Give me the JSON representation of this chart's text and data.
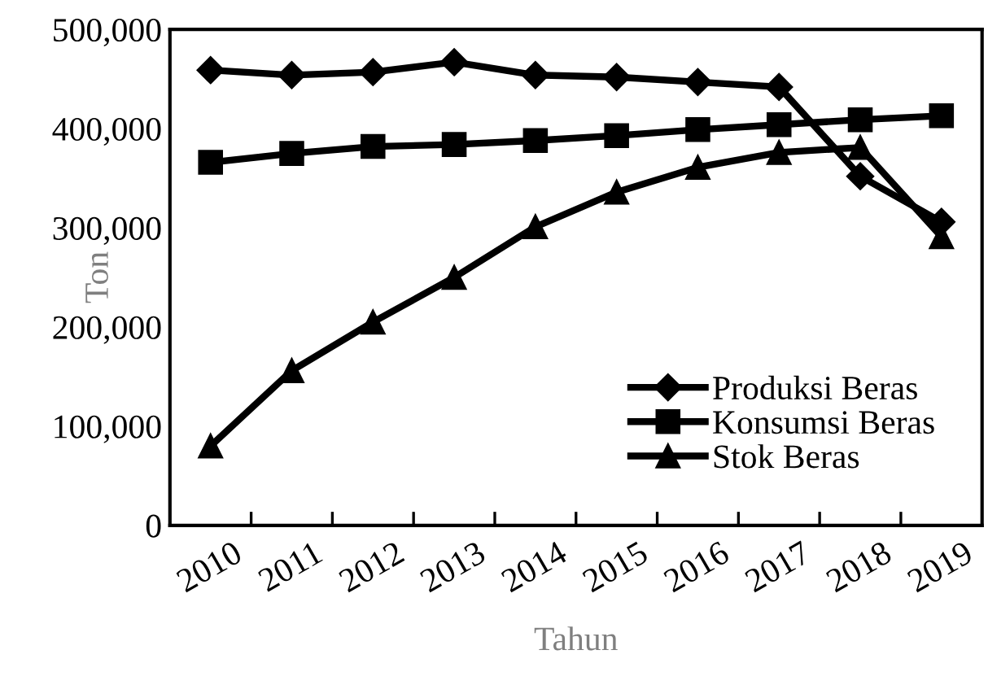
{
  "chart_data": {
    "type": "line",
    "xlabel": "Tahun",
    "ylabel": "Ton",
    "categories": [
      "2010",
      "2011",
      "2012",
      "2013",
      "2014",
      "2015",
      "2016",
      "2017",
      "2018",
      "2019"
    ],
    "series": [
      {
        "name": "Produksi Beras",
        "color": "#000000",
        "marker": "diamond",
        "values": [
          459000,
          454000,
          457000,
          467000,
          454000,
          452000,
          447000,
          442000,
          352000,
          306000
        ]
      },
      {
        "name": "Konsumsi Beras",
        "color": "#000000",
        "marker": "square",
        "values": [
          366000,
          375000,
          382000,
          384000,
          388000,
          393000,
          399000,
          404000,
          409000,
          413000
        ]
      },
      {
        "name": "Stok Beras",
        "color": "#000000",
        "marker": "triangle",
        "values": [
          80000,
          156000,
          205000,
          250000,
          301000,
          336000,
          361000,
          376000,
          381000,
          291000
        ]
      }
    ],
    "ylim": [
      0,
      500000
    ],
    "yticks": [
      {
        "value": 0,
        "label": "0"
      },
      {
        "value": 100000,
        "label": "100,000"
      },
      {
        "value": 200000,
        "label": "200,000"
      },
      {
        "value": 300000,
        "label": "300,000"
      },
      {
        "value": 400000,
        "label": "400,000"
      },
      {
        "value": 500000,
        "label": "500,000"
      }
    ],
    "legend": "bottom right",
    "grid": false,
    "line_style": "solid"
  }
}
